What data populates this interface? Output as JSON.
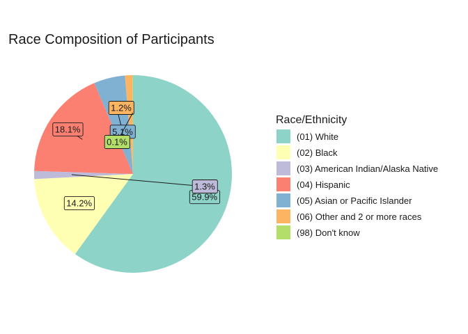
{
  "chart_data": {
    "type": "pie",
    "title": "Race Composition of Participants",
    "legend_title": "Race/Ethnicity",
    "legend_position": "right",
    "direction": "clockwise-from-top",
    "slices": [
      {
        "category": "(01) White",
        "value": 59.9,
        "label": "59.9%",
        "color": "#8DD3C7"
      },
      {
        "category": "(02) Black",
        "value": 14.2,
        "label": "14.2%",
        "color": "#FFFFB3"
      },
      {
        "category": "(03) American Indian/Alaska Native",
        "value": 1.3,
        "label": "1.3%",
        "color": "#BEBADA"
      },
      {
        "category": "(04) Hispanic",
        "value": 18.1,
        "label": "18.1%",
        "color": "#FB8072"
      },
      {
        "category": "(05) Asian or Pacific Islander",
        "value": 5.1,
        "label": "5.1%",
        "color": "#80B1D3"
      },
      {
        "category": "(06) Other and 2 or more races",
        "value": 1.2,
        "label": "1.2%",
        "color": "#FDB462"
      },
      {
        "category": "(98) Don't know",
        "value": 0.1,
        "label": "0.1%",
        "color": "#B3DE69"
      }
    ]
  }
}
